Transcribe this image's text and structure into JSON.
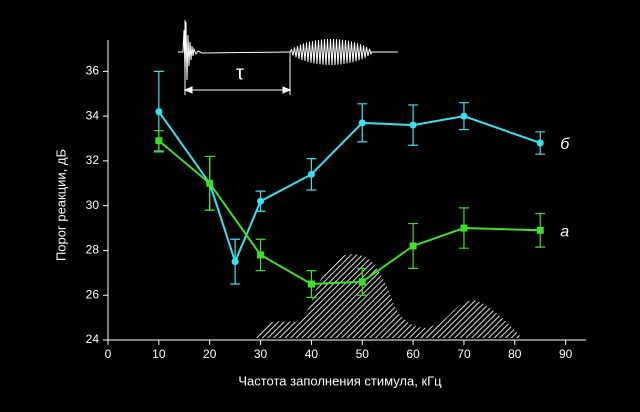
{
  "chart_data": {
    "type": "line",
    "xlabel": "Частота заполнения стимула, кГц",
    "ylabel": "Порог реакции, дБ",
    "inset_label": "τ",
    "xlim": [
      0,
      94
    ],
    "xticks": [
      0,
      10,
      20,
      30,
      40,
      50,
      60,
      70,
      80,
      90
    ],
    "ylim": [
      24,
      37.4
    ],
    "yticks": [
      24,
      26,
      28,
      30,
      32,
      34,
      36
    ],
    "series": [
      {
        "name": "б",
        "color": "#33e4f2",
        "x": [
          10,
          20,
          25,
          30,
          40,
          50,
          60,
          70,
          85
        ],
        "values": [
          34.2,
          31.0,
          27.5,
          30.2,
          31.4,
          33.7,
          33.6,
          34.0,
          32.8
        ],
        "errors": [
          1.8,
          1.2,
          1.0,
          0.45,
          0.7,
          0.85,
          0.9,
          0.6,
          0.5
        ]
      },
      {
        "name": "а",
        "color": "#3ee024",
        "x": [
          10,
          20,
          30,
          40,
          50,
          60,
          70,
          85
        ],
        "values": [
          32.9,
          31.0,
          27.8,
          26.5,
          26.6,
          28.2,
          29.0,
          28.9
        ],
        "errors": [
          0.45,
          1.2,
          0.7,
          0.6,
          0.6,
          1.0,
          0.9,
          0.75
        ]
      }
    ]
  }
}
